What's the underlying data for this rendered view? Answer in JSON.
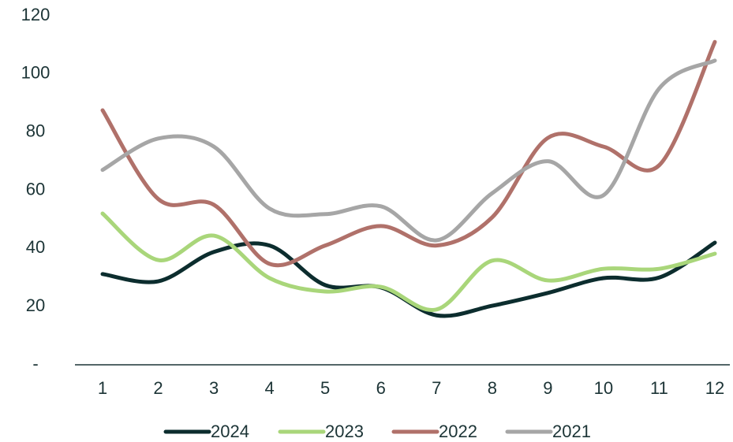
{
  "chart_data": {
    "type": "line",
    "categories": [
      "1",
      "2",
      "3",
      "4",
      "5",
      "6",
      "7",
      "8",
      "9",
      "10",
      "11",
      "12"
    ],
    "series": [
      {
        "name": "2024",
        "color": "#0c2d2e",
        "values": [
          31.2,
          28.7,
          38.8,
          41,
          27.4,
          26.6,
          17,
          20.3,
          24.7,
          29.8,
          30,
          42
        ]
      },
      {
        "name": "2023",
        "color": "#a9d67a",
        "values": [
          52,
          36,
          44.4,
          29.8,
          25.2,
          26.8,
          19,
          35.8,
          29,
          33,
          33,
          38.2
        ]
      },
      {
        "name": "2022",
        "color": "#b0716a",
        "values": [
          87.5,
          57,
          55,
          34.7,
          41,
          47.7,
          41,
          50.7,
          78,
          75,
          68.6,
          111
        ]
      },
      {
        "name": "2021",
        "color": "#a6a6a6",
        "values": [
          67,
          77.8,
          75,
          53.7,
          51.8,
          54.5,
          42.8,
          59,
          70,
          58.3,
          95,
          104.6
        ]
      }
    ],
    "ylim": [
      0,
      120
    ],
    "yticks": [
      {
        "value": 0,
        "label": "-"
      },
      20,
      40,
      60,
      80,
      100,
      120
    ],
    "smooth": true,
    "legend": "bottom"
  }
}
